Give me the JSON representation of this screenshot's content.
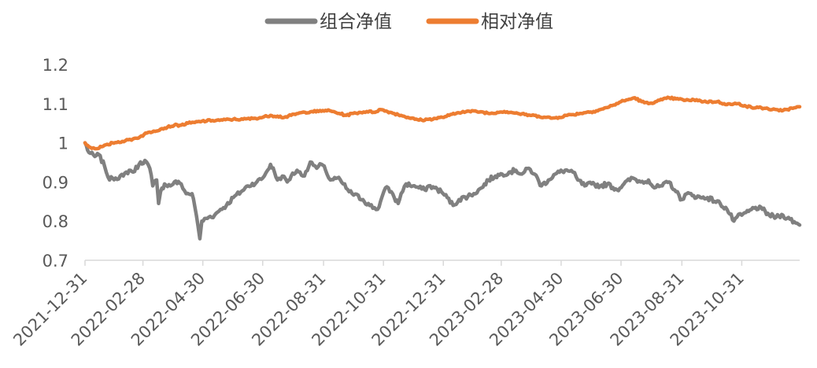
{
  "chart_data": {
    "type": "line",
    "title": "",
    "xlabel": "",
    "ylabel": "",
    "ylim": [
      0.7,
      1.2
    ],
    "y_ticks": [
      "0.7",
      "0.8",
      "0.9",
      "1",
      "1.1",
      "1.2"
    ],
    "x_ticks": [
      "2021-12-31",
      "2022-02-28",
      "2022-04-30",
      "2022-06-30",
      "2022-08-31",
      "2022-10-31",
      "2022-12-31",
      "2023-02-28",
      "2023-04-30",
      "2023-06-30",
      "2023-08-31",
      "2023-10-31"
    ],
    "x_range": [
      "2021-12-31",
      "2023-12-29"
    ],
    "grid": false,
    "legend_position": "top-center",
    "series": [
      {
        "name": "组合净值",
        "color": "#808080",
        "points": [
          [
            "2021-12-31",
            1.0
          ],
          [
            "2022-01-04",
            0.975
          ],
          [
            "2022-01-10",
            0.965
          ],
          [
            "2022-01-14",
            0.97
          ],
          [
            "2022-01-20",
            0.94
          ],
          [
            "2022-01-25",
            0.905
          ],
          [
            "2022-01-28",
            0.91
          ],
          [
            "2022-02-08",
            0.915
          ],
          [
            "2022-02-14",
            0.93
          ],
          [
            "2022-02-18",
            0.925
          ],
          [
            "2022-02-24",
            0.945
          ],
          [
            "2022-03-02",
            0.955
          ],
          [
            "2022-03-07",
            0.935
          ],
          [
            "2022-03-10",
            0.89
          ],
          [
            "2022-03-14",
            0.905
          ],
          [
            "2022-03-16",
            0.845
          ],
          [
            "2022-03-18",
            0.875
          ],
          [
            "2022-03-22",
            0.895
          ],
          [
            "2022-03-28",
            0.89
          ],
          [
            "2022-04-01",
            0.9
          ],
          [
            "2022-04-08",
            0.895
          ],
          [
            "2022-04-13",
            0.87
          ],
          [
            "2022-04-19",
            0.87
          ],
          [
            "2022-04-22",
            0.835
          ],
          [
            "2022-04-25",
            0.79
          ],
          [
            "2022-04-27",
            0.755
          ],
          [
            "2022-04-29",
            0.8
          ],
          [
            "2022-05-06",
            0.81
          ],
          [
            "2022-05-12",
            0.815
          ],
          [
            "2022-05-18",
            0.83
          ],
          [
            "2022-05-24",
            0.84
          ],
          [
            "2022-05-31",
            0.86
          ],
          [
            "2022-06-08",
            0.875
          ],
          [
            "2022-06-15",
            0.89
          ],
          [
            "2022-06-24",
            0.9
          ],
          [
            "2022-06-30",
            0.91
          ],
          [
            "2022-07-05",
            0.93
          ],
          [
            "2022-07-08",
            0.945
          ],
          [
            "2022-07-12",
            0.925
          ],
          [
            "2022-07-15",
            0.905
          ],
          [
            "2022-07-20",
            0.915
          ],
          [
            "2022-07-25",
            0.9
          ],
          [
            "2022-07-29",
            0.915
          ],
          [
            "2022-08-04",
            0.93
          ],
          [
            "2022-08-10",
            0.915
          ],
          [
            "2022-08-16",
            0.94
          ],
          [
            "2022-08-19",
            0.95
          ],
          [
            "2022-08-24",
            0.935
          ],
          [
            "2022-08-29",
            0.945
          ],
          [
            "2022-09-02",
            0.93
          ],
          [
            "2022-09-07",
            0.905
          ],
          [
            "2022-09-14",
            0.91
          ],
          [
            "2022-09-20",
            0.895
          ],
          [
            "2022-09-26",
            0.875
          ],
          [
            "2022-10-10",
            0.855
          ],
          [
            "2022-10-17",
            0.84
          ],
          [
            "2022-10-25",
            0.83
          ],
          [
            "2022-10-28",
            0.85
          ],
          [
            "2022-11-02",
            0.885
          ],
          [
            "2022-11-08",
            0.875
          ],
          [
            "2022-11-11",
            0.86
          ],
          [
            "2022-11-15",
            0.845
          ],
          [
            "2022-11-18",
            0.87
          ],
          [
            "2022-11-23",
            0.895
          ],
          [
            "2022-11-30",
            0.89
          ],
          [
            "2022-12-06",
            0.885
          ],
          [
            "2022-12-12",
            0.88
          ],
          [
            "2022-12-16",
            0.89
          ],
          [
            "2022-12-22",
            0.885
          ],
          [
            "2022-12-29",
            0.875
          ],
          [
            "2023-01-04",
            0.86
          ],
          [
            "2023-01-10",
            0.84
          ],
          [
            "2023-01-16",
            0.855
          ],
          [
            "2023-01-31",
            0.87
          ],
          [
            "2023-02-08",
            0.885
          ],
          [
            "2023-02-15",
            0.905
          ],
          [
            "2023-02-22",
            0.915
          ],
          [
            "2023-03-01",
            0.92
          ],
          [
            "2023-03-08",
            0.925
          ],
          [
            "2023-03-15",
            0.93
          ],
          [
            "2023-03-21",
            0.92
          ],
          [
            "2023-03-28",
            0.935
          ],
          [
            "2023-04-03",
            0.92
          ],
          [
            "2023-04-10",
            0.89
          ],
          [
            "2023-04-17",
            0.905
          ],
          [
            "2023-04-24",
            0.92
          ],
          [
            "2023-05-04",
            0.93
          ],
          [
            "2023-05-12",
            0.925
          ],
          [
            "2023-05-17",
            0.905
          ],
          [
            "2023-05-24",
            0.89
          ],
          [
            "2023-05-31",
            0.895
          ],
          [
            "2023-06-09",
            0.89
          ],
          [
            "2023-06-16",
            0.895
          ],
          [
            "2023-06-26",
            0.88
          ],
          [
            "2023-07-03",
            0.895
          ],
          [
            "2023-07-12",
            0.91
          ],
          [
            "2023-07-20",
            0.9
          ],
          [
            "2023-07-28",
            0.905
          ],
          [
            "2023-08-03",
            0.885
          ],
          [
            "2023-08-11",
            0.89
          ],
          [
            "2023-08-18",
            0.9
          ],
          [
            "2023-08-25",
            0.875
          ],
          [
            "2023-08-31",
            0.855
          ],
          [
            "2023-09-05",
            0.87
          ],
          [
            "2023-09-12",
            0.865
          ],
          [
            "2023-09-19",
            0.86
          ],
          [
            "2023-09-26",
            0.86
          ],
          [
            "2023-10-09",
            0.845
          ],
          [
            "2023-10-16",
            0.83
          ],
          [
            "2023-10-23",
            0.8
          ],
          [
            "2023-10-26",
            0.81
          ],
          [
            "2023-10-31",
            0.815
          ],
          [
            "2023-11-07",
            0.825
          ],
          [
            "2023-11-14",
            0.835
          ],
          [
            "2023-11-21",
            0.83
          ],
          [
            "2023-11-28",
            0.815
          ],
          [
            "2023-12-05",
            0.81
          ],
          [
            "2023-12-12",
            0.815
          ],
          [
            "2023-12-19",
            0.805
          ],
          [
            "2023-12-25",
            0.795
          ],
          [
            "2023-12-29",
            0.79
          ]
        ]
      },
      {
        "name": "相对净值",
        "color": "#ED7D31",
        "points": [
          [
            "2021-12-31",
            1.0
          ],
          [
            "2022-01-04",
            0.99
          ],
          [
            "2022-01-10",
            0.985
          ],
          [
            "2022-01-17",
            0.99
          ],
          [
            "2022-01-24",
            0.995
          ],
          [
            "2022-01-28",
            1.0
          ],
          [
            "2022-02-10",
            1.005
          ],
          [
            "2022-02-18",
            1.01
          ],
          [
            "2022-02-25",
            1.015
          ],
          [
            "2022-03-04",
            1.025
          ],
          [
            "2022-03-11",
            1.03
          ],
          [
            "2022-03-18",
            1.035
          ],
          [
            "2022-03-25",
            1.04
          ],
          [
            "2022-04-01",
            1.045
          ],
          [
            "2022-04-08",
            1.045
          ],
          [
            "2022-04-15",
            1.05
          ],
          [
            "2022-04-22",
            1.052
          ],
          [
            "2022-04-29",
            1.055
          ],
          [
            "2022-05-10",
            1.057
          ],
          [
            "2022-05-20",
            1.058
          ],
          [
            "2022-05-31",
            1.06
          ],
          [
            "2022-06-10",
            1.06
          ],
          [
            "2022-06-20",
            1.062
          ],
          [
            "2022-06-30",
            1.065
          ],
          [
            "2022-07-08",
            1.07
          ],
          [
            "2022-07-15",
            1.068
          ],
          [
            "2022-07-22",
            1.065
          ],
          [
            "2022-07-29",
            1.07
          ],
          [
            "2022-08-05",
            1.075
          ],
          [
            "2022-08-12",
            1.078
          ],
          [
            "2022-08-19",
            1.08
          ],
          [
            "2022-08-26",
            1.08
          ],
          [
            "2022-09-02",
            1.083
          ],
          [
            "2022-09-09",
            1.08
          ],
          [
            "2022-09-16",
            1.075
          ],
          [
            "2022-09-23",
            1.07
          ],
          [
            "2022-09-30",
            1.075
          ],
          [
            "2022-10-14",
            1.08
          ],
          [
            "2022-10-21",
            1.078
          ],
          [
            "2022-10-28",
            1.085
          ],
          [
            "2022-11-04",
            1.08
          ],
          [
            "2022-11-11",
            1.075
          ],
          [
            "2022-11-18",
            1.07
          ],
          [
            "2022-11-25",
            1.065
          ],
          [
            "2022-12-02",
            1.06
          ],
          [
            "2022-12-09",
            1.058
          ],
          [
            "2022-12-16",
            1.06
          ],
          [
            "2022-12-23",
            1.062
          ],
          [
            "2022-12-30",
            1.065
          ],
          [
            "2023-01-06",
            1.07
          ],
          [
            "2023-01-13",
            1.075
          ],
          [
            "2023-01-20",
            1.08
          ],
          [
            "2023-02-03",
            1.08
          ],
          [
            "2023-02-10",
            1.078
          ],
          [
            "2023-02-17",
            1.075
          ],
          [
            "2023-02-24",
            1.078
          ],
          [
            "2023-03-03",
            1.08
          ],
          [
            "2023-03-10",
            1.078
          ],
          [
            "2023-03-17",
            1.075
          ],
          [
            "2023-03-24",
            1.072
          ],
          [
            "2023-03-31",
            1.07
          ],
          [
            "2023-04-07",
            1.068
          ],
          [
            "2023-04-14",
            1.065
          ],
          [
            "2023-04-21",
            1.063
          ],
          [
            "2023-04-28",
            1.065
          ],
          [
            "2023-05-05",
            1.07
          ],
          [
            "2023-05-12",
            1.072
          ],
          [
            "2023-05-19",
            1.075
          ],
          [
            "2023-05-26",
            1.078
          ],
          [
            "2023-06-02",
            1.08
          ],
          [
            "2023-06-09",
            1.085
          ],
          [
            "2023-06-16",
            1.09
          ],
          [
            "2023-06-21",
            1.095
          ],
          [
            "2023-06-30",
            1.105
          ],
          [
            "2023-07-07",
            1.11
          ],
          [
            "2023-07-14",
            1.115
          ],
          [
            "2023-07-21",
            1.105
          ],
          [
            "2023-07-28",
            1.1
          ],
          [
            "2023-08-04",
            1.105
          ],
          [
            "2023-08-11",
            1.11
          ],
          [
            "2023-08-18",
            1.115
          ],
          [
            "2023-08-25",
            1.112
          ],
          [
            "2023-09-01",
            1.11
          ],
          [
            "2023-09-08",
            1.108
          ],
          [
            "2023-09-15",
            1.11
          ],
          [
            "2023-09-22",
            1.105
          ],
          [
            "2023-10-06",
            1.105
          ],
          [
            "2023-10-13",
            1.1
          ],
          [
            "2023-10-20",
            1.098
          ],
          [
            "2023-10-27",
            1.1
          ],
          [
            "2023-11-03",
            1.095
          ],
          [
            "2023-11-10",
            1.09
          ],
          [
            "2023-11-17",
            1.09
          ],
          [
            "2023-11-24",
            1.088
          ],
          [
            "2023-12-01",
            1.085
          ],
          [
            "2023-12-08",
            1.082
          ],
          [
            "2023-12-15",
            1.085
          ],
          [
            "2023-12-22",
            1.088
          ],
          [
            "2023-12-29",
            1.092
          ]
        ]
      }
    ]
  }
}
